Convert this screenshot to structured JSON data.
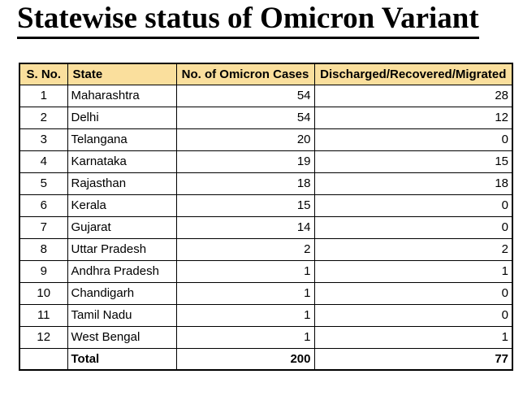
{
  "title": "Statewise status of Omicron Variant",
  "table": {
    "headers": {
      "sno": "S. No.",
      "state": "State",
      "cases": "No. of Omicron Cases",
      "discharged": "Discharged/Recovered/Migrated"
    },
    "rows": [
      {
        "sno": "1",
        "state": "Maharashtra",
        "cases": "54",
        "discharged": "28"
      },
      {
        "sno": "2",
        "state": "Delhi",
        "cases": "54",
        "discharged": "12"
      },
      {
        "sno": "3",
        "state": "Telangana",
        "cases": "20",
        "discharged": "0"
      },
      {
        "sno": "4",
        "state": "Karnataka",
        "cases": "19",
        "discharged": "15"
      },
      {
        "sno": "5",
        "state": "Rajasthan",
        "cases": "18",
        "discharged": "18"
      },
      {
        "sno": "6",
        "state": "Kerala",
        "cases": "15",
        "discharged": "0"
      },
      {
        "sno": "7",
        "state": "Gujarat",
        "cases": "14",
        "discharged": "0"
      },
      {
        "sno": "8",
        "state": "Uttar Pradesh",
        "cases": "2",
        "discharged": "2"
      },
      {
        "sno": "9",
        "state": "Andhra Pradesh",
        "cases": "1",
        "discharged": "1"
      },
      {
        "sno": "10",
        "state": "Chandigarh",
        "cases": "1",
        "discharged": "0"
      },
      {
        "sno": "11",
        "state": "Tamil Nadu",
        "cases": "1",
        "discharged": "0"
      },
      {
        "sno": "12",
        "state": "West Bengal",
        "cases": "1",
        "discharged": "1"
      }
    ],
    "total": {
      "sno": "",
      "label": "Total",
      "cases": "200",
      "discharged": "77"
    }
  },
  "colors": {
    "header_bg": "#FADF9D",
    "border": "#000000",
    "text": "#000000",
    "background": "#FFFFFF"
  },
  "chart_data": {
    "type": "table",
    "title": "Statewise status of Omicron Variant",
    "columns": [
      "S. No.",
      "State",
      "No. of Omicron Cases",
      "Discharged/Recovered/Migrated"
    ],
    "rows": [
      [
        1,
        "Maharashtra",
        54,
        28
      ],
      [
        2,
        "Delhi",
        54,
        12
      ],
      [
        3,
        "Telangana",
        20,
        0
      ],
      [
        4,
        "Karnataka",
        19,
        15
      ],
      [
        5,
        "Rajasthan",
        18,
        18
      ],
      [
        6,
        "Kerala",
        15,
        0
      ],
      [
        7,
        "Gujarat",
        14,
        0
      ],
      [
        8,
        "Uttar Pradesh",
        2,
        2
      ],
      [
        9,
        "Andhra Pradesh",
        1,
        1
      ],
      [
        10,
        "Chandigarh",
        1,
        0
      ],
      [
        11,
        "Tamil Nadu",
        1,
        0
      ],
      [
        12,
        "West Bengal",
        1,
        1
      ]
    ],
    "totals": {
      "label": "Total",
      "no_of_omicron_cases": 200,
      "discharged_recovered_migrated": 77
    }
  }
}
